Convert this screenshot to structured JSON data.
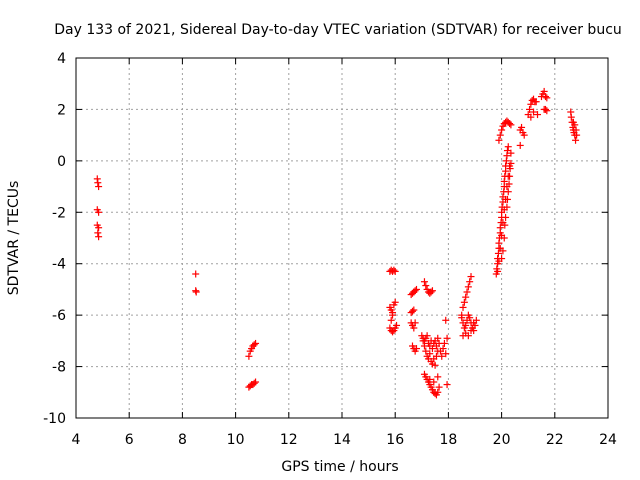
{
  "chart_data": {
    "type": "scatter",
    "title": "Day 133 of 2021, Sidereal Day-to-day VTEC variation (SDTVAR) for receiver bucu",
    "xlabel": "GPS time / hours",
    "ylabel": "SDTVAR / TECUs",
    "xlim": [
      4,
      24
    ],
    "ylim": [
      -10,
      4
    ],
    "xticks": [
      4,
      6,
      8,
      10,
      12,
      14,
      16,
      18,
      20,
      22,
      24
    ],
    "yticks": [
      -10,
      -8,
      -6,
      -4,
      -2,
      0,
      2,
      4
    ],
    "xtick_labels": [
      "4",
      "6",
      "8",
      "10",
      "12",
      "14",
      "16",
      "18",
      "20",
      "22",
      "24"
    ],
    "ytick_labels": [
      "-10",
      "-8",
      "-6",
      "-4",
      "-2",
      "0",
      "2",
      "4"
    ],
    "grid": true,
    "marker": "+",
    "color": "#ff0000",
    "series": [
      {
        "name": "SDTVAR",
        "points": [
          [
            4.8,
            -0.7
          ],
          [
            4.82,
            -0.85
          ],
          [
            4.85,
            -1.0
          ],
          [
            4.8,
            -1.9
          ],
          [
            4.85,
            -2.0
          ],
          [
            4.8,
            -2.5
          ],
          [
            4.85,
            -2.6
          ],
          [
            4.82,
            -2.8
          ],
          [
            4.85,
            -2.95
          ],
          [
            8.5,
            -4.4
          ],
          [
            8.5,
            -5.05
          ],
          [
            8.52,
            -5.1
          ],
          [
            10.5,
            -7.6
          ],
          [
            10.55,
            -7.4
          ],
          [
            10.6,
            -7.3
          ],
          [
            10.65,
            -7.2
          ],
          [
            10.7,
            -7.15
          ],
          [
            10.75,
            -7.1
          ],
          [
            10.5,
            -8.8
          ],
          [
            10.55,
            -8.75
          ],
          [
            10.6,
            -8.7
          ],
          [
            10.65,
            -8.7
          ],
          [
            10.7,
            -8.65
          ],
          [
            10.75,
            -8.6
          ],
          [
            15.8,
            -4.3
          ],
          [
            15.85,
            -4.25
          ],
          [
            15.9,
            -4.3
          ],
          [
            15.95,
            -4.25
          ],
          [
            16.0,
            -4.3
          ],
          [
            15.8,
            -5.7
          ],
          [
            15.85,
            -5.8
          ],
          [
            15.9,
            -5.9
          ],
          [
            15.9,
            -6.0
          ],
          [
            15.85,
            -6.2
          ],
          [
            15.95,
            -5.6
          ],
          [
            16.0,
            -5.5
          ],
          [
            15.8,
            -6.5
          ],
          [
            15.85,
            -6.6
          ],
          [
            15.9,
            -6.65
          ],
          [
            15.95,
            -6.6
          ],
          [
            16.0,
            -6.5
          ],
          [
            16.05,
            -6.4
          ],
          [
            16.6,
            -5.2
          ],
          [
            16.65,
            -5.15
          ],
          [
            16.7,
            -5.1
          ],
          [
            16.75,
            -5.05
          ],
          [
            16.8,
            -5.0
          ],
          [
            16.6,
            -5.9
          ],
          [
            16.65,
            -5.85
          ],
          [
            16.7,
            -5.8
          ],
          [
            16.6,
            -6.3
          ],
          [
            16.65,
            -6.4
          ],
          [
            16.7,
            -6.5
          ],
          [
            16.75,
            -6.3
          ],
          [
            16.65,
            -7.2
          ],
          [
            16.7,
            -7.3
          ],
          [
            16.75,
            -7.4
          ],
          [
            16.8,
            -7.3
          ],
          [
            17.1,
            -4.7
          ],
          [
            17.15,
            -4.85
          ],
          [
            17.2,
            -5.0
          ],
          [
            17.25,
            -5.1
          ],
          [
            17.3,
            -5.15
          ],
          [
            17.35,
            -5.1
          ],
          [
            17.4,
            -5.05
          ],
          [
            17.05,
            -6.9
          ],
          [
            17.1,
            -7.0
          ],
          [
            17.15,
            -6.9
          ],
          [
            17.2,
            -6.8
          ],
          [
            17.25,
            -7.1
          ],
          [
            17.3,
            -7.2
          ],
          [
            17.35,
            -7.0
          ],
          [
            17.4,
            -7.3
          ],
          [
            17.45,
            -7.1
          ],
          [
            17.5,
            -7.0
          ],
          [
            17.55,
            -7.2
          ],
          [
            17.6,
            -6.9
          ],
          [
            17.65,
            -7.1
          ],
          [
            17.7,
            -7.4
          ],
          [
            17.75,
            -7.6
          ],
          [
            17.8,
            -7.3
          ],
          [
            17.85,
            -7.1
          ],
          [
            17.15,
            -7.4
          ],
          [
            17.2,
            -7.6
          ],
          [
            17.25,
            -7.7
          ],
          [
            17.3,
            -7.5
          ],
          [
            17.35,
            -7.8
          ],
          [
            17.4,
            -7.9
          ],
          [
            17.45,
            -7.7
          ],
          [
            17.5,
            -7.95
          ],
          [
            17.55,
            -7.6
          ],
          [
            17.6,
            -7.4
          ],
          [
            17.0,
            -6.8
          ],
          [
            17.05,
            -7.0
          ],
          [
            17.1,
            -7.2
          ],
          [
            17.1,
            -8.3
          ],
          [
            17.15,
            -8.4
          ],
          [
            17.2,
            -8.5
          ],
          [
            17.25,
            -8.6
          ],
          [
            17.3,
            -8.7
          ],
          [
            17.35,
            -8.8
          ],
          [
            17.4,
            -8.9
          ],
          [
            17.45,
            -9.0
          ],
          [
            17.5,
            -9.05
          ],
          [
            17.55,
            -9.1
          ],
          [
            17.6,
            -9.0
          ],
          [
            17.65,
            -8.8
          ],
          [
            17.3,
            -8.5
          ],
          [
            17.45,
            -8.6
          ],
          [
            17.6,
            -8.4
          ],
          [
            17.9,
            -6.2
          ],
          [
            17.95,
            -6.9
          ],
          [
            17.9,
            -7.5
          ],
          [
            17.95,
            -8.7
          ],
          [
            18.5,
            -6.1
          ],
          [
            18.55,
            -6.3
          ],
          [
            18.6,
            -6.5
          ],
          [
            18.65,
            -6.4
          ],
          [
            18.7,
            -6.2
          ],
          [
            18.75,
            -6.0
          ],
          [
            18.8,
            -6.1
          ],
          [
            18.85,
            -6.3
          ],
          [
            18.9,
            -6.5
          ],
          [
            18.95,
            -6.6
          ],
          [
            19.0,
            -6.4
          ],
          [
            19.05,
            -6.2
          ],
          [
            18.55,
            -6.8
          ],
          [
            18.65,
            -6.7
          ],
          [
            18.75,
            -6.8
          ],
          [
            18.85,
            -6.6
          ],
          [
            18.95,
            -6.3
          ],
          [
            18.5,
            -6.0
          ],
          [
            18.55,
            -5.7
          ],
          [
            18.6,
            -5.5
          ],
          [
            18.65,
            -5.3
          ],
          [
            18.7,
            -5.1
          ],
          [
            18.75,
            -4.9
          ],
          [
            18.8,
            -4.7
          ],
          [
            18.85,
            -4.5
          ],
          [
            19.8,
            -4.4
          ],
          [
            19.82,
            -4.2
          ],
          [
            19.85,
            -4.0
          ],
          [
            19.85,
            -3.8
          ],
          [
            19.88,
            -3.6
          ],
          [
            19.9,
            -3.4
          ],
          [
            19.9,
            -3.2
          ],
          [
            19.92,
            -3.0
          ],
          [
            19.95,
            -2.8
          ],
          [
            19.95,
            -2.6
          ],
          [
            19.98,
            -2.4
          ],
          [
            20.0,
            -2.2
          ],
          [
            20.0,
            -2.0
          ],
          [
            20.02,
            -1.8
          ],
          [
            20.05,
            -1.6
          ],
          [
            20.05,
            -1.4
          ],
          [
            20.08,
            -1.2
          ],
          [
            20.1,
            -1.0
          ],
          [
            20.1,
            -0.8
          ],
          [
            20.12,
            -0.6
          ],
          [
            20.15,
            -0.4
          ],
          [
            20.15,
            -0.2
          ],
          [
            20.18,
            0.0
          ],
          [
            20.2,
            0.2
          ],
          [
            20.22,
            0.4
          ],
          [
            20.25,
            0.55
          ],
          [
            20.0,
            -3.8
          ],
          [
            20.05,
            -3.5
          ],
          [
            20.1,
            -3.0
          ],
          [
            20.12,
            -2.5
          ],
          [
            20.15,
            -2.2
          ],
          [
            20.2,
            -1.8
          ],
          [
            20.22,
            -1.5
          ],
          [
            20.25,
            -1.2
          ],
          [
            20.28,
            -0.9
          ],
          [
            20.3,
            -0.6
          ],
          [
            20.32,
            -0.3
          ],
          [
            20.35,
            -0.1
          ],
          [
            19.85,
            -4.3
          ],
          [
            19.9,
            -3.9
          ],
          [
            19.95,
            -3.4
          ],
          [
            20.0,
            -2.9
          ],
          [
            20.05,
            -2.4
          ],
          [
            20.1,
            -1.9
          ],
          [
            20.15,
            -1.5
          ],
          [
            20.2,
            -1.0
          ],
          [
            20.25,
            -0.6
          ],
          [
            20.3,
            -0.2
          ],
          [
            20.35,
            0.3
          ],
          [
            19.9,
            0.8
          ],
          [
            19.95,
            1.0
          ],
          [
            20.0,
            1.2
          ],
          [
            20.05,
            1.35
          ],
          [
            20.1,
            1.45
          ],
          [
            20.15,
            1.5
          ],
          [
            20.2,
            1.55
          ],
          [
            20.25,
            1.5
          ],
          [
            20.3,
            1.45
          ],
          [
            20.35,
            1.4
          ],
          [
            20.7,
            1.2
          ],
          [
            20.75,
            1.3
          ],
          [
            20.8,
            1.1
          ],
          [
            20.85,
            1.0
          ],
          [
            20.7,
            0.6
          ],
          [
            21.0,
            1.8
          ],
          [
            21.05,
            2.0
          ],
          [
            21.1,
            2.2
          ],
          [
            21.15,
            2.35
          ],
          [
            21.2,
            2.4
          ],
          [
            21.25,
            2.3
          ],
          [
            21.1,
            1.7
          ],
          [
            21.2,
            1.9
          ],
          [
            21.3,
            2.3
          ],
          [
            21.35,
            1.8
          ],
          [
            21.5,
            2.5
          ],
          [
            21.55,
            2.6
          ],
          [
            21.6,
            2.7
          ],
          [
            21.65,
            2.5
          ],
          [
            21.7,
            2.45
          ],
          [
            21.6,
            2.0
          ],
          [
            21.65,
            2.0
          ],
          [
            21.7,
            1.95
          ],
          [
            22.6,
            1.9
          ],
          [
            22.62,
            1.7
          ],
          [
            22.65,
            1.5
          ],
          [
            22.68,
            1.3
          ],
          [
            22.7,
            1.2
          ],
          [
            22.72,
            1.1
          ],
          [
            22.75,
            1.0
          ],
          [
            22.7,
            1.5
          ],
          [
            22.75,
            1.4
          ],
          [
            22.8,
            1.2
          ],
          [
            22.78,
            0.8
          ],
          [
            22.82,
            1.0
          ]
        ]
      }
    ]
  }
}
